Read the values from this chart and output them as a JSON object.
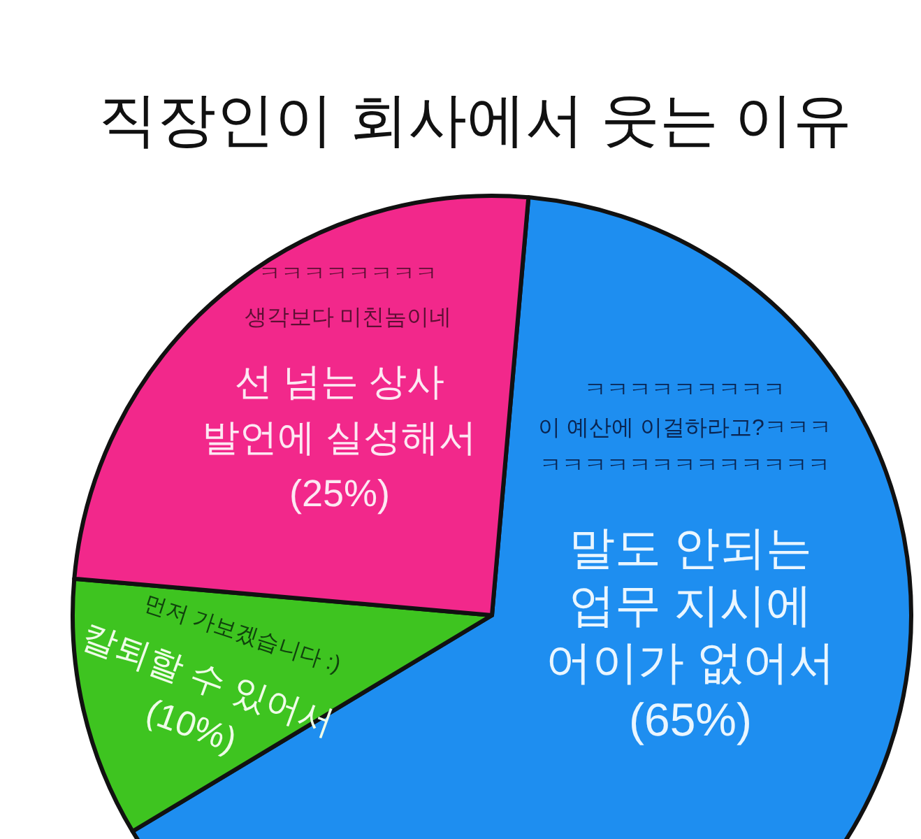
{
  "chart_data": {
    "type": "pie",
    "title": "직장인이 회사에서 웃는 이유",
    "categories": [
      "말도 안되는\n업무 지시에\n어이가 없어서",
      "칼퇴할 수 있어서",
      "선 넘는 상사\n발언에 실성해서"
    ],
    "values": [
      65,
      10,
      25
    ],
    "colors": [
      "#1e8ef0",
      "#3ec420",
      "#f2288b"
    ],
    "value_labels": [
      "(65%)",
      "(10%)",
      "(25%)"
    ],
    "annotations": [
      "ㅋㅋㅋㅋㅋㅋㅋㅋ",
      "생각보다 미친놈이네",
      "ㅋㅋㅋㅋㅋㅋㅋㅋㅋ",
      "이 예산에 이걸하라고?ㅋㅋㅋ",
      "ㅋㅋㅋㅋㅋㅋㅋㅋㅋㅋㅋㅋㅋ",
      "먼저 가보겠습니다 :)"
    ]
  }
}
